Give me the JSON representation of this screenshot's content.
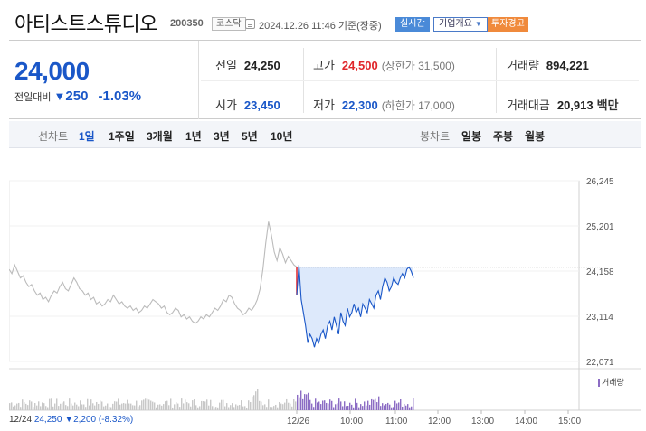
{
  "header": {
    "title": "아티스트스튜디오",
    "code": "200350",
    "market": "코스닥",
    "datetime": "2024.12.26 11:46  기준(장중)",
    "realtime": "실시간",
    "company_info": "기업개요",
    "warning": "투자경고"
  },
  "quote": {
    "price": "24,000",
    "change_label": "전일대비",
    "change": "250",
    "change_pct": "-1.03%",
    "prev_close_label": "전일",
    "prev_close": "24,250",
    "open_label": "시가",
    "open": "23,450",
    "high_label": "고가",
    "high": "24,500",
    "upper_limit": "(상한가 31,500)",
    "low_label": "저가",
    "low": "22,300",
    "lower_limit": "(하한가 17,000)",
    "volume_label": "거래량",
    "volume": "894,221",
    "amount_label": "거래대금",
    "amount": "20,913",
    "amount_unit": "백만"
  },
  "tabs": {
    "line_chart_label": "선차트",
    "periods": [
      "1일",
      "1주일",
      "3개월",
      "1년",
      "3년",
      "5년",
      "10년"
    ],
    "active_period": "1일",
    "candle_chart_label": "봉차트",
    "candles": [
      "일봉",
      "주봉",
      "월봉"
    ]
  },
  "colors": {
    "up": "#e0262b",
    "down": "#1a57c8",
    "prev_series": "#bbbbbb",
    "today_fill": "#dde9fb",
    "volume_today": "#8c6cc4"
  },
  "chart_data": {
    "type": "line",
    "y_ticks": [
      "26,245",
      "25,201",
      "24,158",
      "23,114",
      "22,071"
    ],
    "ylim": [
      22071,
      26245
    ],
    "x_ticks": [
      "12/26",
      "10:00",
      "11:00",
      "12:00",
      "13:00",
      "14:00",
      "15:00"
    ],
    "reference_line": 24250,
    "footer": {
      "date": "12/24",
      "close": "24,250",
      "change": "▼2,200",
      "change_pct": "(-8.32%)"
    },
    "volume_label": "거래량",
    "series": [
      {
        "values": [
          24200,
          24100,
          24300,
          24150,
          24000,
          24050,
          23900,
          23800,
          23850,
          23700,
          23600,
          23650,
          23500,
          23550,
          23450,
          23600,
          23700,
          23650,
          23800,
          23900,
          23750,
          23700,
          23850,
          24000,
          23900,
          23750,
          23700,
          23600,
          23650,
          23500,
          23550,
          23400,
          23450,
          23350,
          23400,
          23500,
          23450,
          23600,
          23500,
          23400,
          23450,
          23350,
          23300,
          23350,
          23250,
          23300,
          23200,
          23250,
          23350,
          23300,
          23400,
          23500,
          23450,
          23400,
          23300,
          23350,
          23200,
          23150,
          23200,
          23300,
          23250,
          23100,
          23150,
          23050,
          23100,
          23000,
          22950,
          23000,
          23100,
          23050,
          23150,
          23100,
          23200,
          23300,
          23250,
          23350,
          23500,
          23450,
          23600,
          23550,
          23400,
          23300,
          23250,
          23150,
          23200,
          23300,
          23250,
          23350,
          23500,
          23750,
          24200,
          24800,
          25300,
          25000,
          24600,
          24400,
          24700,
          24550,
          24350,
          24500,
          24400,
          24300,
          24250
        ]
      },
      {
        "values": [
          23600,
          24300,
          23500,
          23200,
          22900,
          22500,
          22700,
          22600,
          22400,
          22600,
          22500,
          22700,
          22800,
          22600,
          22900,
          23000,
          22800,
          23100,
          22900,
          22700,
          23200,
          23000,
          22900,
          23300,
          23100,
          23200,
          23400,
          23200,
          23300,
          23100,
          23400,
          23300,
          23200,
          23500,
          23400,
          23300,
          23600,
          23700,
          23500,
          23800,
          24000,
          23900,
          23700,
          23800,
          24000,
          23900,
          23850,
          24000,
          24100,
          24000,
          24200,
          24250,
          24150,
          24000
        ]
      }
    ]
  }
}
